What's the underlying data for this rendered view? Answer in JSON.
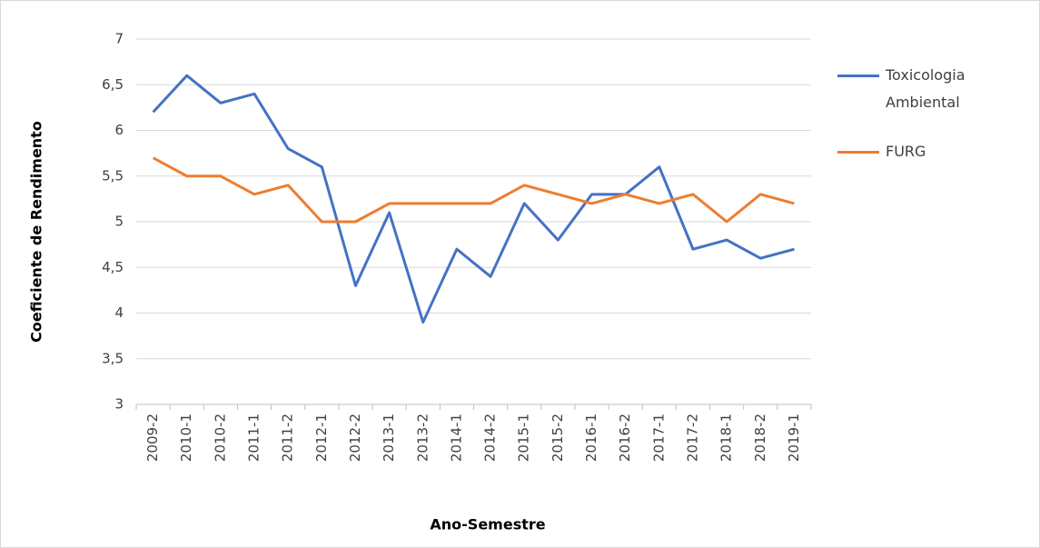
{
  "chart_data": {
    "type": "line",
    "x_label": "Ano-Semestre",
    "y_label": "Coeficiente de Rendimento",
    "categories": [
      "2009-2",
      "2010-1",
      "2010-2",
      "2011-1",
      "2011-2",
      "2012-1",
      "2012-2",
      "2013-1",
      "2013-2",
      "2014-1",
      "2014-2",
      "2015-1",
      "2015-2",
      "2016-1",
      "2016-2",
      "2017-1",
      "2017-2",
      "2018-1",
      "2018-2",
      "2019-1"
    ],
    "series": [
      {
        "name": "Toxicologia Ambiental",
        "color": "#4472c4",
        "values": [
          6.2,
          6.6,
          6.3,
          6.4,
          5.8,
          5.6,
          4.3,
          5.1,
          3.9,
          4.7,
          4.4,
          5.2,
          4.8,
          5.3,
          5.3,
          5.6,
          4.7,
          4.8,
          4.6,
          4.7
        ]
      },
      {
        "name": "FURG",
        "color": "#ed7d31",
        "values": [
          5.7,
          5.5,
          5.5,
          5.3,
          5.4,
          5.0,
          5.0,
          5.2,
          5.2,
          5.2,
          5.2,
          5.4,
          5.3,
          5.2,
          5.3,
          5.2,
          5.3,
          5.0,
          5.3,
          5.2
        ]
      }
    ],
    "ylim": [
      3,
      7
    ],
    "yticks": [
      3,
      {
        "value": 3.5,
        "label": "3,5"
      },
      4,
      {
        "value": 4.5,
        "label": "4,5"
      },
      5,
      {
        "value": 5.5,
        "label": "5,5"
      },
      6,
      {
        "value": 6.5,
        "label": "6,5"
      },
      7
    ],
    "grid": true,
    "legend": "right"
  }
}
